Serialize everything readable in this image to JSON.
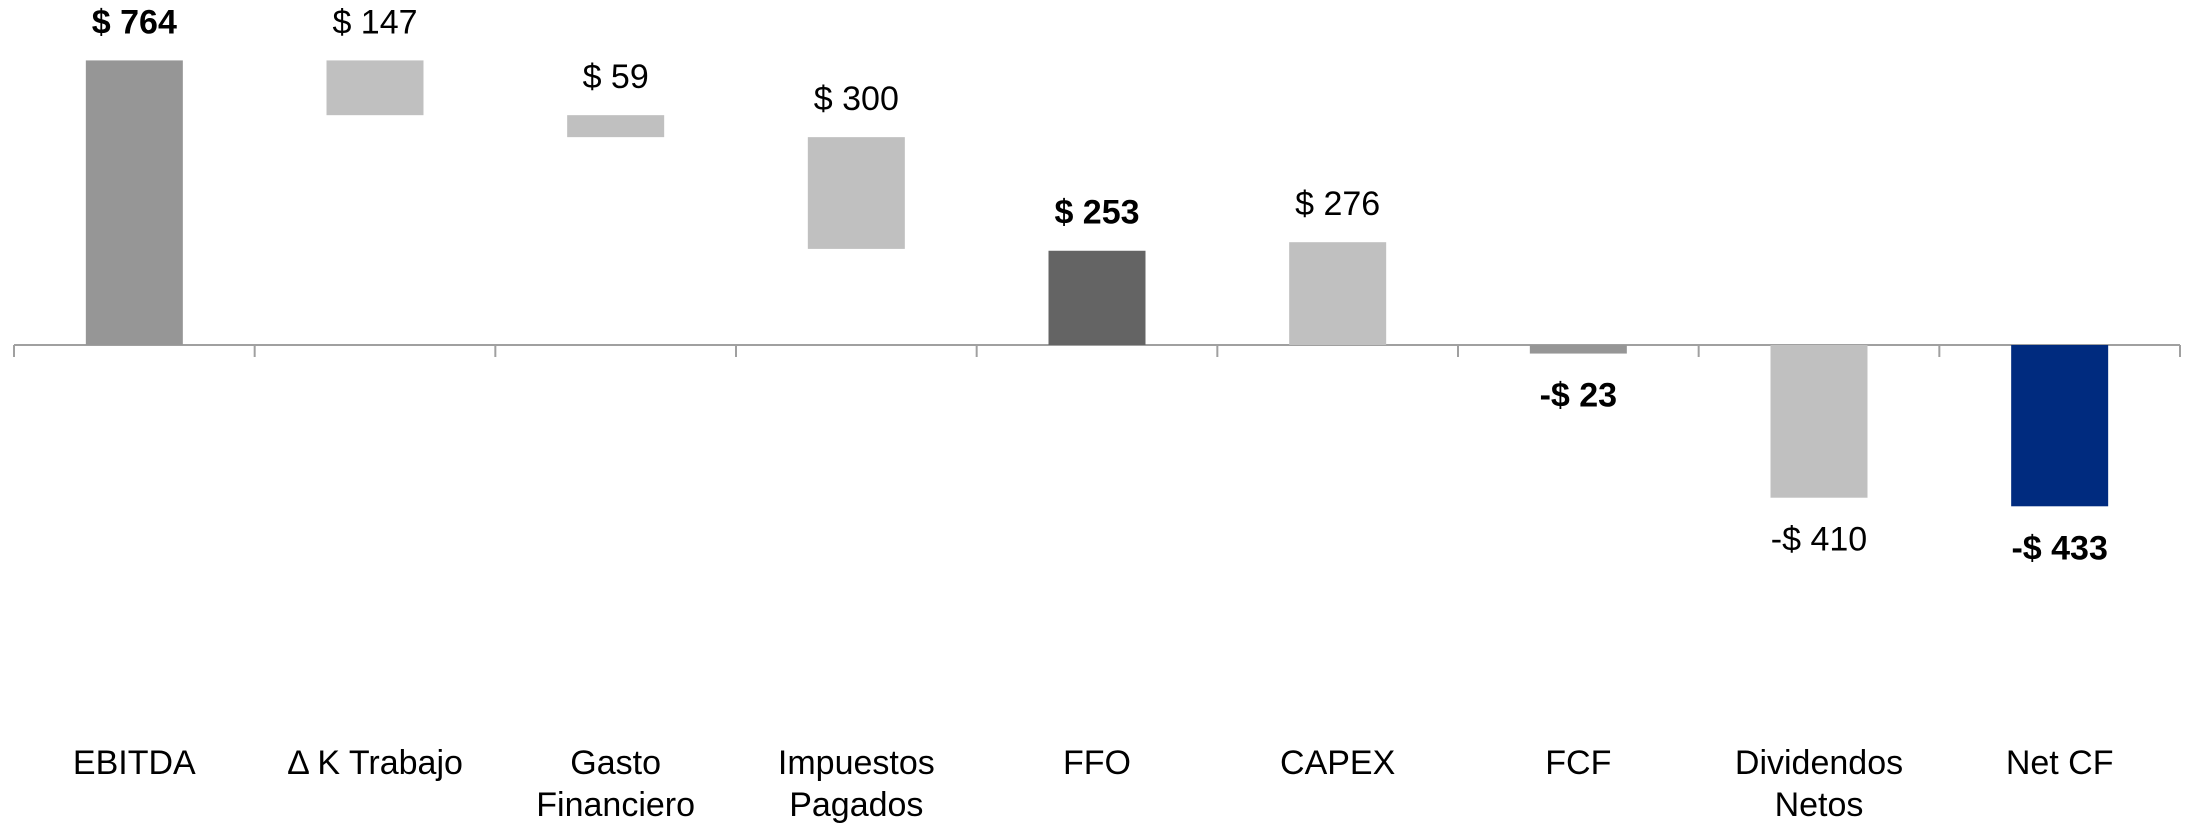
{
  "chart_data": {
    "type": "waterfall",
    "categories": [
      "EBITDA",
      "Δ K Trabajo",
      "Gasto Financiero",
      "Impuestos Pagados",
      "FFO",
      "CAPEX",
      "FCF",
      "Dividendos Netos",
      "Net CF"
    ],
    "values": [
      764,
      147,
      59,
      300,
      253,
      276,
      -23,
      -410,
      -433
    ],
    "value_labels": [
      "$ 764",
      "$ 147",
      "$ 59",
      "$ 300",
      "$ 253",
      "$ 276",
      "-$ 23",
      "-$ 410",
      "-$ 433"
    ],
    "measure": [
      "absolute",
      "decrease",
      "decrease",
      "decrease",
      "absolute",
      "absolute",
      "absolute",
      "absolute",
      "absolute"
    ],
    "colors": [
      "#969696",
      "#c0c0c0",
      "#c0c0c0",
      "#c0c0c0",
      "#646464",
      "#c0c0c0",
      "#969696",
      "#c0c0c0",
      "#002b7f"
    ],
    "bold_labels": [
      true,
      false,
      false,
      false,
      true,
      false,
      true,
      false,
      true
    ]
  }
}
